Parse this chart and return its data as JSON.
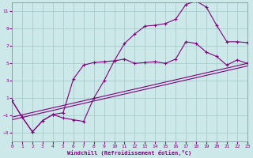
{
  "xlabel": "Windchill (Refroidissement éolien,°C)",
  "ylabel": "",
  "background_color": "#cce8e8",
  "grid_color": "#aacccc",
  "line_color": "#800080",
  "xlim": [
    0,
    23
  ],
  "ylim": [
    -4,
    12
  ],
  "xticks": [
    0,
    1,
    2,
    3,
    4,
    5,
    6,
    7,
    8,
    9,
    10,
    11,
    12,
    13,
    14,
    15,
    16,
    17,
    18,
    19,
    20,
    21,
    22,
    23
  ],
  "yticks": [
    -3,
    -1,
    1,
    3,
    5,
    7,
    9,
    11
  ],
  "series1_x": [
    0,
    1,
    2,
    3,
    4,
    5,
    6,
    7,
    8,
    9,
    10,
    11,
    12,
    13,
    14,
    15,
    16,
    17,
    18,
    19,
    20,
    21,
    22,
    23
  ],
  "series1_y": [
    0.7,
    -1.2,
    -2.9,
    -1.6,
    -0.9,
    -0.7,
    3.2,
    4.8,
    5.1,
    5.2,
    5.3,
    5.5,
    5.0,
    5.1,
    5.2,
    5.0,
    5.5,
    7.5,
    7.3,
    6.3,
    5.8,
    4.8,
    5.4,
    5.0
  ],
  "series2_x": [
    0,
    1,
    2,
    3,
    4,
    5,
    6,
    7,
    8,
    9,
    10,
    11,
    12,
    13,
    14,
    15,
    16,
    17,
    18,
    19,
    20,
    21,
    22,
    23
  ],
  "series2_y": [
    0.7,
    -1.2,
    -2.9,
    -1.6,
    -0.9,
    -1.3,
    -1.5,
    -1.7,
    1.0,
    3.0,
    5.3,
    7.3,
    8.4,
    9.3,
    9.4,
    9.6,
    10.1,
    11.8,
    12.2,
    11.5,
    9.4,
    7.5,
    7.5,
    7.4
  ],
  "series3_x": [
    0,
    23
  ],
  "series3_y": [
    -1.2,
    5.0
  ],
  "series4_x": [
    0,
    23
  ],
  "series4_y": [
    -1.5,
    4.7
  ]
}
